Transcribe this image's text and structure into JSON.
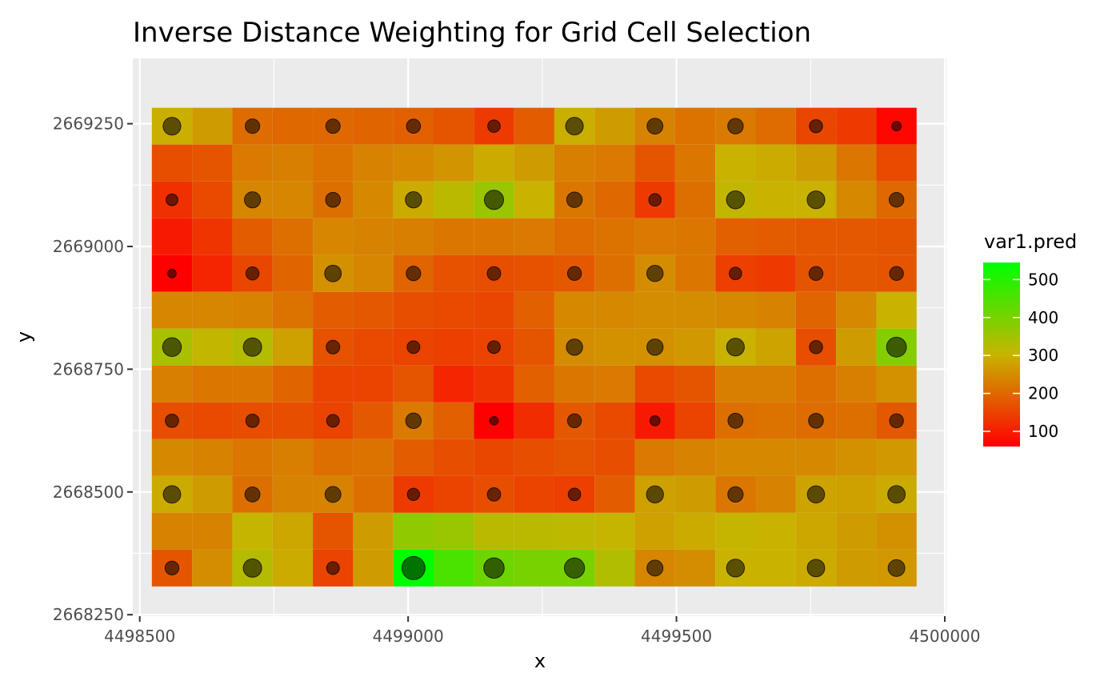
{
  "chart_data": {
    "type": "heatmap",
    "title": "Inverse Distance Weighting for Grid Cell Selection",
    "xlabel": "x",
    "ylabel": "y",
    "xlim": [
      4498487,
      4500003
    ],
    "ylim": [
      2668247,
      2669383
    ],
    "x_ticks": [
      4498500,
      4498750,
      4499000,
      4499250,
      4499500,
      4499750,
      4500000
    ],
    "x_tick_labels": [
      "4498500",
      "4499000",
      "4499500",
      "4500000"
    ],
    "y_ticks": [
      2668250,
      2668375,
      2668500,
      2668625,
      2668750,
      2668875,
      2669000,
      2669125,
      2669250
    ],
    "y_tick_labels": [
      "2668250",
      "2668500",
      "2668750",
      "2669000",
      "2669250"
    ],
    "grid": true,
    "cell_size": 75,
    "x_centers": [
      4498560,
      4498635,
      4498710,
      4498785,
      4498860,
      4498935,
      4499010,
      4499085,
      4499160,
      4499235,
      4499310,
      4499385,
      4499460,
      4499535,
      4499610,
      4499685,
      4499760,
      4499835,
      4499910
    ],
    "y_centers": [
      2669245,
      2669170,
      2669095,
      2669020,
      2668945,
      2668870,
      2668795,
      2668720,
      2668645,
      2668570,
      2668495,
      2668420,
      2668345
    ],
    "grid_values": [
      [
        295,
        270,
        205,
        200,
        200,
        195,
        190,
        175,
        140,
        185,
        295,
        270,
        235,
        215,
        225,
        205,
        155,
        140,
        70
      ],
      [
        165,
        175,
        225,
        230,
        215,
        235,
        245,
        260,
        290,
        270,
        230,
        225,
        175,
        220,
        300,
        290,
        270,
        220,
        160
      ],
      [
        125,
        160,
        240,
        240,
        210,
        245,
        290,
        320,
        360,
        300,
        220,
        200,
        140,
        210,
        310,
        300,
        300,
        245,
        200
      ],
      [
        95,
        130,
        185,
        210,
        240,
        235,
        230,
        220,
        220,
        225,
        205,
        215,
        225,
        220,
        190,
        185,
        180,
        180,
        175
      ],
      [
        60,
        110,
        155,
        195,
        255,
        240,
        195,
        170,
        165,
        170,
        180,
        210,
        250,
        220,
        145,
        140,
        175,
        180,
        175
      ],
      [
        240,
        240,
        235,
        215,
        185,
        180,
        165,
        160,
        155,
        190,
        245,
        245,
        250,
        250,
        245,
        235,
        195,
        245,
        300
      ],
      [
        340,
        310,
        325,
        275,
        170,
        160,
        150,
        145,
        150,
        175,
        250,
        255,
        255,
        265,
        300,
        280,
        165,
        270,
        385
      ],
      [
        230,
        220,
        220,
        195,
        150,
        150,
        175,
        110,
        130,
        190,
        220,
        225,
        160,
        175,
        230,
        230,
        210,
        230,
        255
      ],
      [
        165,
        160,
        165,
        165,
        150,
        180,
        225,
        190,
        60,
        120,
        180,
        160,
        95,
        150,
        210,
        215,
        205,
        210,
        180
      ],
      [
        245,
        235,
        220,
        230,
        210,
        215,
        185,
        165,
        155,
        165,
        175,
        165,
        225,
        235,
        245,
        245,
        245,
        255,
        265
      ],
      [
        290,
        270,
        210,
        235,
        235,
        210,
        140,
        150,
        165,
        150,
        145,
        185,
        275,
        270,
        220,
        235,
        280,
        275,
        290
      ],
      [
        235,
        235,
        305,
        285,
        175,
        270,
        370,
        360,
        320,
        320,
        315,
        305,
        275,
        290,
        305,
        300,
        285,
        270,
        255
      ],
      [
        175,
        250,
        325,
        290,
        150,
        270,
        545,
        455,
        410,
        400,
        400,
        330,
        240,
        250,
        300,
        300,
        290,
        270,
        265
      ]
    ],
    "point_x": [
      4498560,
      4498710,
      4498860,
      4499010,
      4499160,
      4499310,
      4499460,
      4499610,
      4499760,
      4499910
    ],
    "point_y": [
      2669245,
      2669095,
      2668945,
      2668795,
      2668645,
      2668495,
      2668345
    ],
    "point_values": [
      [
        300,
        195,
        190,
        185,
        145,
        295,
        235,
        225,
        160,
        90
      ],
      [
        130,
        245,
        205,
        250,
        360,
        225,
        145,
        310,
        300,
        200
      ],
      [
        80,
        160,
        260,
        195,
        170,
        180,
        250,
        145,
        180,
        180
      ],
      [
        340,
        325,
        170,
        150,
        150,
        250,
        250,
        300,
        160,
        385
      ],
      [
        165,
        165,
        150,
        225,
        80,
        180,
        100,
        210,
        205,
        180
      ],
      [
        290,
        210,
        235,
        140,
        165,
        145,
        275,
        220,
        280,
        290
      ],
      [
        175,
        325,
        150,
        545,
        410,
        400,
        240,
        305,
        290,
        265
      ]
    ],
    "legend": {
      "title": "var1.pred",
      "position": "right",
      "min": 60,
      "max": 545,
      "breaks": [
        100,
        200,
        300,
        400,
        500
      ],
      "break_labels": [
        "100",
        "200",
        "300",
        "400",
        "500"
      ],
      "color_low": "#ff0000",
      "color_mid": "#c8b400",
      "color_high": "#00ff00"
    },
    "colors": {
      "panel_background": "#ebebeb",
      "grid_major": "#ffffff",
      "point_fill": "#000000"
    }
  }
}
